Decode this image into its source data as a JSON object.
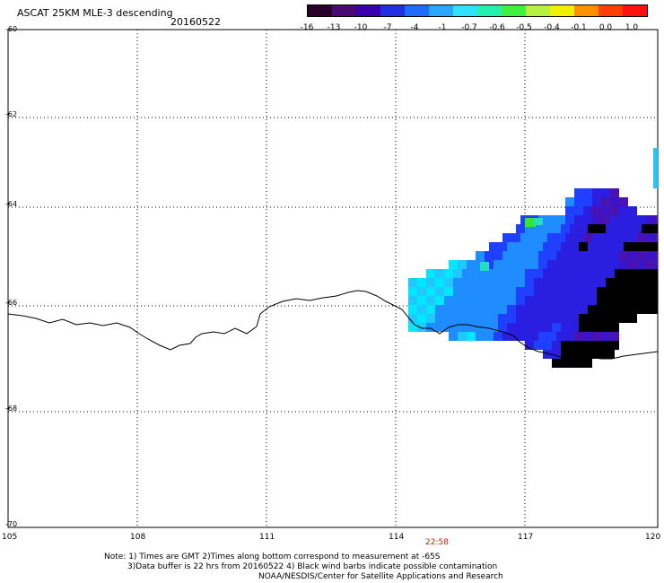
{
  "header": {
    "title": "ASCAT 25KM MLE-3 descending",
    "date": "20160522"
  },
  "colorbar": {
    "colors": [
      "#2a002a",
      "#4a0a72",
      "#3a00b0",
      "#2030e0",
      "#1f6cff",
      "#2aa8ff",
      "#30e0ff",
      "#25f0b0",
      "#40f040",
      "#b8f040",
      "#f0f000",
      "#ff9000",
      "#ff4000",
      "#ff1010"
    ],
    "tick_labels": [
      "-16",
      "-13",
      "-10",
      "-7",
      "-4",
      "-1",
      "-0.7",
      "-0.6",
      "-0.5",
      "-0.4",
      "-0.1",
      "0.0",
      "1.0"
    ]
  },
  "axes": {
    "lat_labels": [
      "-60",
      "-62",
      "-64",
      "-66",
      "-68",
      "-70"
    ],
    "lon_labels": [
      "105",
      "108",
      "111",
      "114",
      "117",
      "120"
    ],
    "grid": "dotted"
  },
  "time_label": "22:58",
  "notes": {
    "line1": "Note: 1) Times are GMT 2)Times along bottom correspond to measurement at -65S",
    "line2": "3)Data buffer is 22 hrs from 20160522 4) Black wind barbs indicate possible contamination",
    "line3": "NOAA/NESDIS/Center for Satellite Applications and Research"
  },
  "swath": {
    "coast_color": "#000000",
    "data_colors": [
      "#20c8ff",
      "#00e8ff",
      "#1f8cff",
      "#2040ff",
      "#2a1ee0",
      "#3a14c8",
      "#4a12b0",
      "#20e0c0",
      "#30e830"
    ]
  }
}
